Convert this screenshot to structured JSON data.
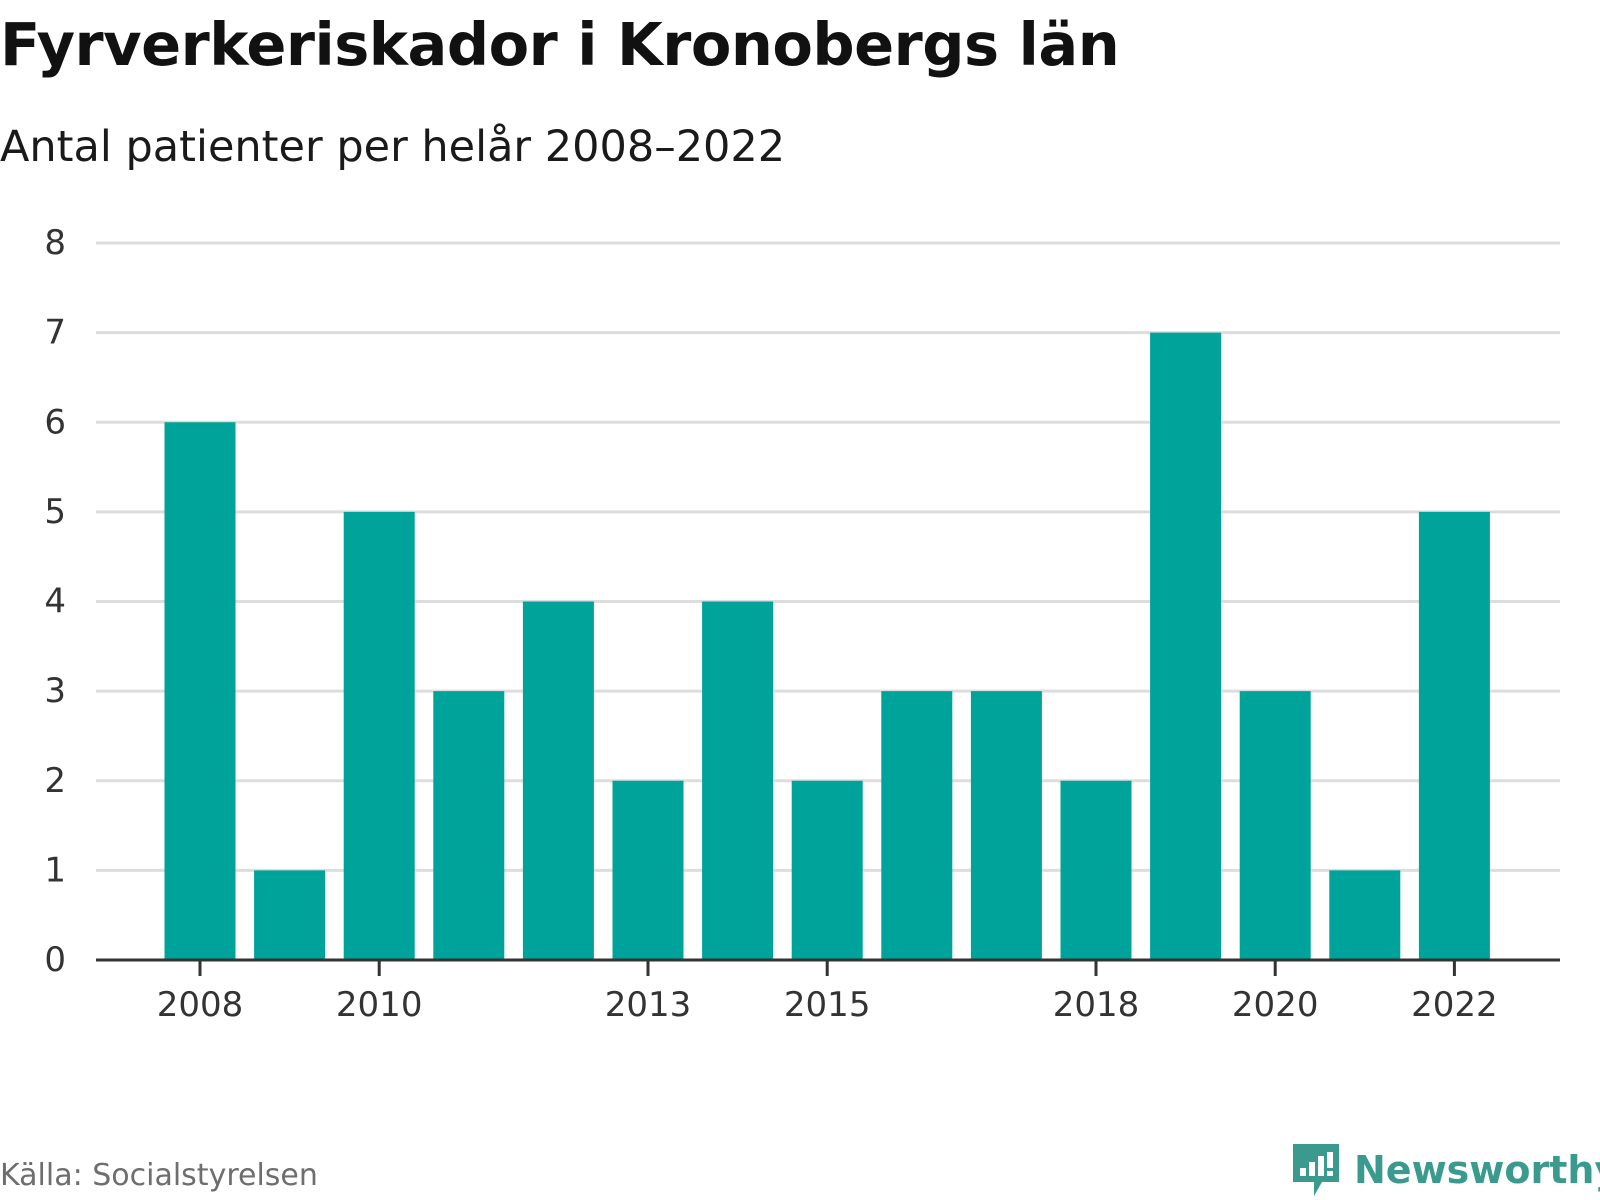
{
  "header": {
    "title": "Fyrverkeriskador i Kronobergs län",
    "subtitle": "Antal patienter per helår 2008–2022"
  },
  "footer": {
    "source": "Källa: Socialstyrelsen",
    "brand": "Newsworthy",
    "brand_icon": "newsworthy-logo-icon"
  },
  "colors": {
    "bar": "#00a39a",
    "grid": "#dddddd",
    "axis": "#333333",
    "tick_label": "#333333",
    "brand": "#3a9a8e"
  },
  "chart_data": {
    "type": "bar",
    "categories": [
      "2008",
      "2009",
      "2010",
      "2011",
      "2012",
      "2013",
      "2014",
      "2015",
      "2016",
      "2017",
      "2018",
      "2019",
      "2020",
      "2021",
      "2022"
    ],
    "values": [
      6,
      1,
      5,
      3,
      4,
      2,
      4,
      2,
      3,
      3,
      2,
      7,
      3,
      1,
      5
    ],
    "x_tick_labels": [
      "2008",
      "2010",
      "2013",
      "2015",
      "2018",
      "2020",
      "2022"
    ],
    "y_ticks": [
      0,
      1,
      2,
      3,
      4,
      5,
      6,
      7,
      8
    ],
    "ylim": [
      0,
      8
    ],
    "grid": true,
    "legend": "none",
    "xlabel": "",
    "ylabel": ""
  }
}
